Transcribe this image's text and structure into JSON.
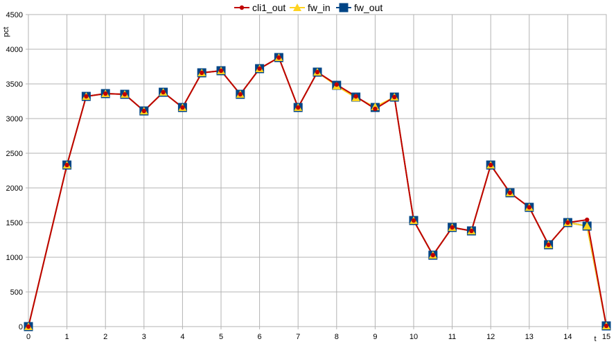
{
  "chart_data": {
    "type": "line",
    "xlabel": "t",
    "ylabel": "pct",
    "xlim": [
      0,
      15
    ],
    "ylim": [
      0,
      4500
    ],
    "xticks": [
      0,
      1,
      2,
      3,
      4,
      5,
      6,
      7,
      8,
      9,
      10,
      11,
      12,
      13,
      14,
      15
    ],
    "yticks": [
      0,
      500,
      1000,
      1500,
      2000,
      2500,
      3000,
      3500,
      4000,
      4500
    ],
    "grid": true,
    "legend_position": "top",
    "series": [
      {
        "name": "cli1_out",
        "color": "#c00000",
        "marker": "circle",
        "x": [
          0,
          1,
          1.5,
          2,
          2.5,
          3,
          3.5,
          4,
          4.5,
          5,
          5.5,
          6,
          6.5,
          7,
          7.5,
          8,
          8.5,
          9,
          9.5,
          10,
          10.5,
          11,
          11.5,
          12,
          12.5,
          13,
          13.5,
          14,
          14.5,
          15
        ],
        "values": [
          0,
          2330,
          3320,
          3360,
          3350,
          3110,
          3380,
          3160,
          3660,
          3690,
          3350,
          3720,
          3880,
          3160,
          3670,
          3490,
          3320,
          3140,
          3310,
          1530,
          1030,
          1430,
          1380,
          2330,
          1930,
          1720,
          1180,
          1500,
          1540,
          10
        ]
      },
      {
        "name": "fw_in",
        "color": "#ffd320",
        "marker": "triangle",
        "x": [
          0,
          1,
          1.5,
          2,
          2.5,
          3,
          3.5,
          4,
          4.5,
          5,
          5.5,
          6,
          6.5,
          7,
          7.5,
          8,
          8.5,
          9,
          9.5,
          10,
          10.5,
          11,
          11.5,
          12,
          12.5,
          13,
          13.5,
          14,
          14.5,
          15
        ],
        "values": [
          0,
          2330,
          3320,
          3360,
          3350,
          3110,
          3380,
          3160,
          3660,
          3690,
          3350,
          3720,
          3880,
          3160,
          3670,
          3470,
          3300,
          3170,
          3310,
          1530,
          1030,
          1430,
          1380,
          2330,
          1930,
          1720,
          1180,
          1500,
          1450,
          10
        ]
      },
      {
        "name": "fw_out",
        "color": "#004586",
        "marker": "square",
        "x": [
          0,
          1,
          1.5,
          2,
          2.5,
          3,
          3.5,
          4,
          4.5,
          5,
          5.5,
          6,
          6.5,
          7,
          7.5,
          8,
          8.5,
          9,
          9.5,
          10,
          10.5,
          11,
          11.5,
          12,
          12.5,
          13,
          13.5,
          14,
          14.5,
          15
        ],
        "values": [
          0,
          2330,
          3320,
          3360,
          3350,
          3110,
          3380,
          3160,
          3660,
          3690,
          3350,
          3720,
          3880,
          3160,
          3670,
          3480,
          3310,
          3160,
          3310,
          1530,
          1030,
          1430,
          1380,
          2330,
          1930,
          1720,
          1180,
          1500,
          1450,
          10
        ]
      }
    ]
  }
}
